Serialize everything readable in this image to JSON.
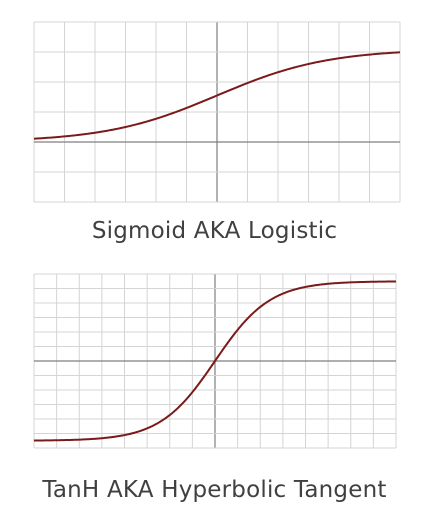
{
  "colors": {
    "curve": "#7a1a1a",
    "grid": "#d4d4d4",
    "axis": "#7f7f7f",
    "caption": "#404040"
  },
  "chart_data": [
    {
      "type": "line",
      "title": "Sigmoid AKA Logistic",
      "function": "sigmoid",
      "xlim": [
        -6,
        6
      ],
      "ylim": [
        -1,
        1
      ],
      "grid": true,
      "x": [
        -6,
        -5,
        -4,
        -3,
        -2,
        -1,
        0,
        1,
        2,
        3,
        4,
        5,
        6
      ],
      "series": [
        {
          "values": [
            0.0025,
            0.0067,
            0.018,
            0.047,
            0.119,
            0.269,
            0.5,
            0.731,
            0.881,
            0.953,
            0.982,
            0.993,
            0.9975
          ]
        }
      ]
    },
    {
      "type": "line",
      "title": "TanH AKA Hyperbolic Tangent",
      "function": "tanh",
      "xlim": [
        -6,
        6
      ],
      "ylim": [
        -1,
        1
      ],
      "grid": true,
      "x": [
        -6,
        -5,
        -4,
        -3,
        -2,
        -1,
        0,
        1,
        2,
        3,
        4,
        5,
        6
      ],
      "series": [
        {
          "values": [
            -1.0,
            -0.9999,
            -0.9993,
            -0.995,
            -0.964,
            -0.762,
            0,
            0.762,
            0.964,
            0.995,
            0.9993,
            0.9999,
            1.0
          ]
        }
      ]
    }
  ]
}
